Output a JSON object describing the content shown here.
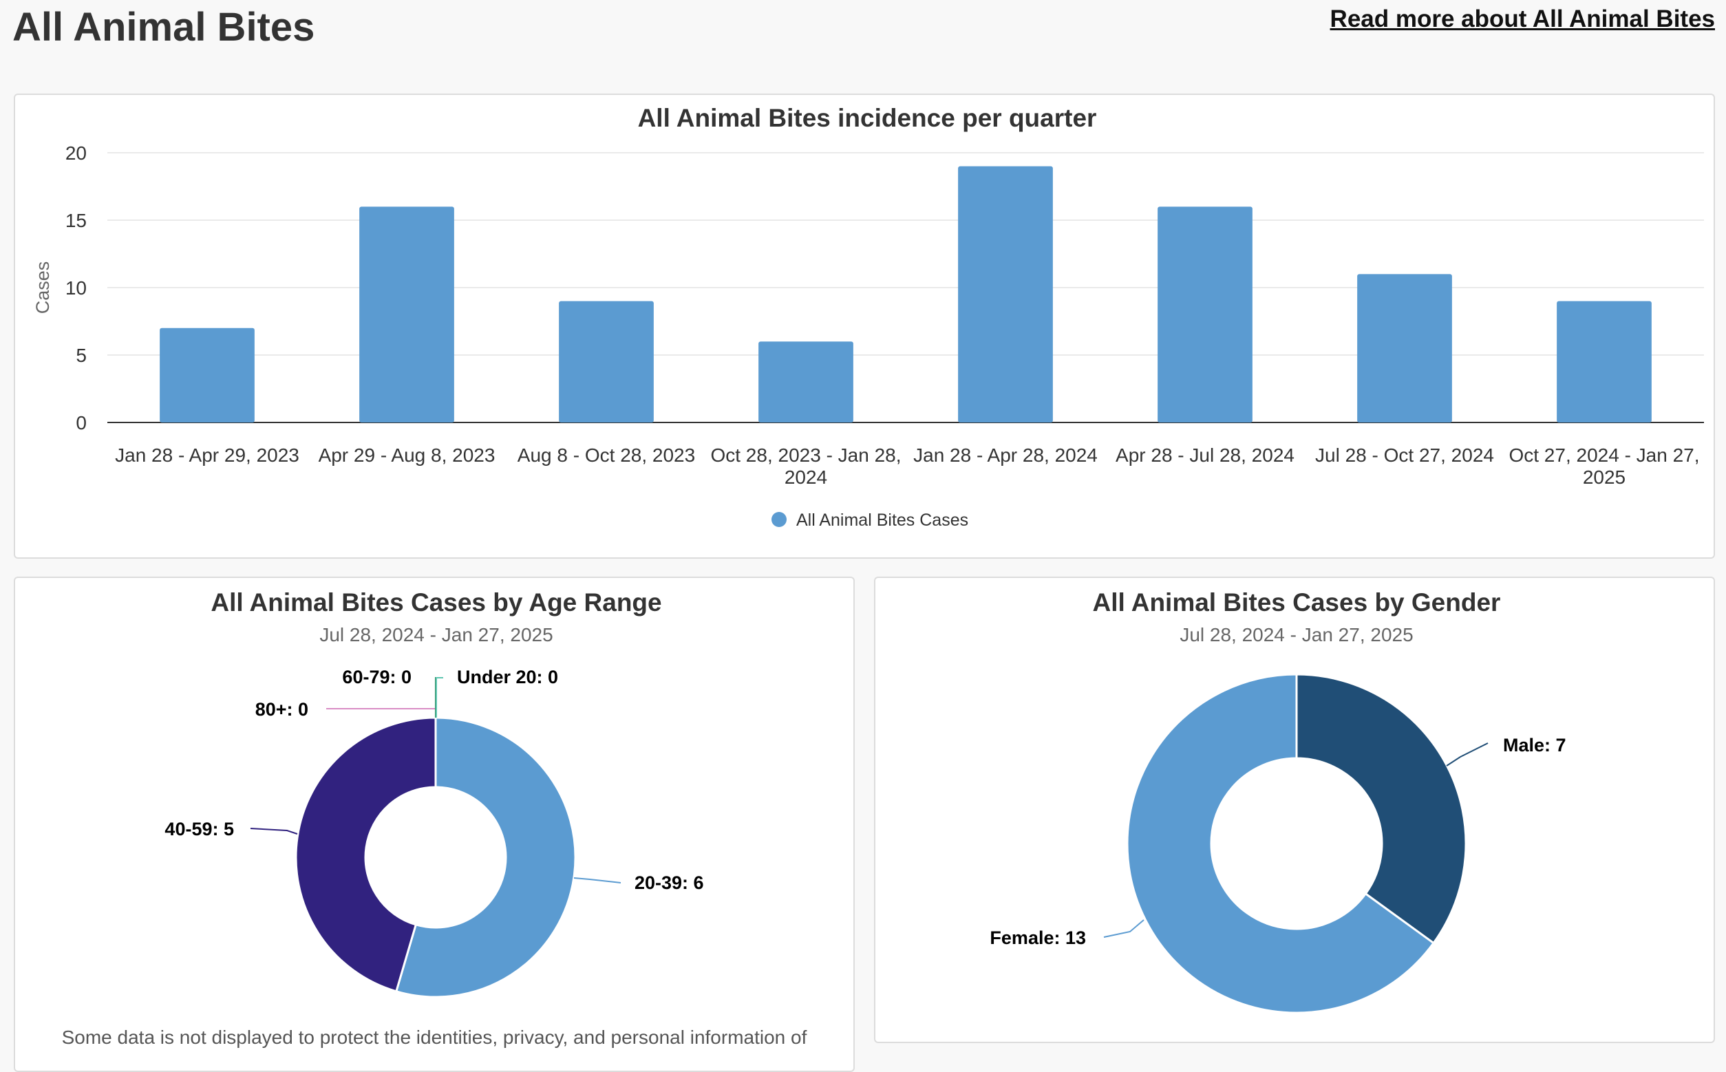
{
  "page": {
    "title": "All Animal Bites",
    "read_more_label": "Read more about All Animal Bites"
  },
  "colors": {
    "bar": "#5b9bd1",
    "age_20_39": "#5b9bd1",
    "age_40_59": "#31227f",
    "age_80_plus": "#d98cc4",
    "age_60_79": "#2a8a5e",
    "age_under_20": "#5fc5b0",
    "male": "#204e76",
    "female": "#5b9bd1"
  },
  "chart_data": [
    {
      "type": "bar",
      "title": "All Animal Bites incidence per quarter",
      "ylabel": "Cases",
      "xlabel": "",
      "ylim": [
        0,
        20
      ],
      "yticks": [
        0,
        5,
        10,
        15,
        20
      ],
      "grid": true,
      "legend": "bottom",
      "categories": [
        [
          "Jan 28 - Apr 29, 2023"
        ],
        [
          "Apr 29 - Aug 8, 2023"
        ],
        [
          "Aug 8 - Oct 28, 2023"
        ],
        [
          "Oct 28, 2023 - Jan 28,",
          "2024"
        ],
        [
          "Jan 28 - Apr 28, 2024"
        ],
        [
          "Apr 28 - Jul 28, 2024"
        ],
        [
          "Jul 28 - Oct 27, 2024"
        ],
        [
          "Oct 27, 2024 - Jan 27,",
          "2025"
        ]
      ],
      "series": [
        {
          "name": "All Animal Bites Cases",
          "values": [
            7,
            16,
            9,
            6,
            19,
            16,
            11,
            9
          ]
        }
      ]
    },
    {
      "type": "pie",
      "title": "All Animal Bites Cases by Age Range",
      "subtitle": "Jul 28, 2024 - Jan 27, 2025",
      "slices": [
        {
          "label": "20-39",
          "value": 6,
          "display": "20-39: 6"
        },
        {
          "label": "40-59",
          "value": 5,
          "display": "40-59: 5"
        },
        {
          "label": "80+",
          "value": 0,
          "display": "80+: 0"
        },
        {
          "label": "60-79",
          "value": 0,
          "display": "60-79: 0"
        },
        {
          "label": "Under 20",
          "value": 0,
          "display": "Under 20: 0"
        }
      ]
    },
    {
      "type": "pie",
      "title": "All Animal Bites Cases by Gender",
      "subtitle": "Jul 28, 2024 - Jan 27, 2025",
      "slices": [
        {
          "label": "Male",
          "value": 7,
          "display": "Male: 7"
        },
        {
          "label": "Female",
          "value": 13,
          "display": "Female: 13"
        }
      ]
    }
  ],
  "note": "Some data is not displayed to protect the identities, privacy, and personal information of"
}
